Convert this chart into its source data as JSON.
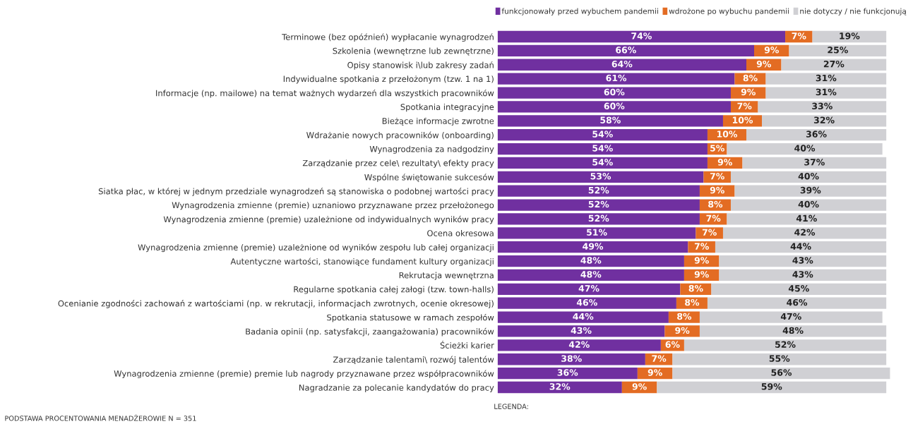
{
  "chart_data": {
    "type": "bar",
    "orientation": "horizontal",
    "stacked": true,
    "categories": [
      "Terminowe (bez opóźnień) wypłacanie wynagrodzeń",
      "Szkolenia (wewnętrzne lub zewnętrzne)",
      "Opisy stanowisk i\\lub zakresy zadań",
      "Indywidualne spotkania z przełożonym (tzw. 1 na 1)",
      "Informacje (np. mailowe) na temat ważnych wydarzeń dla wszystkich pracowników",
      "Spotkania integracyjne",
      "Bieżące informacje zwrotne",
      "Wdrażanie nowych pracowników (onboarding)",
      "Wynagrodzenia za nadgodziny",
      "Zarządzanie przez cele\\ rezultaty\\ efekty pracy",
      "Wspólne świętowanie sukcesów",
      "Siatka płac, w której w jednym przedziale wynagrodzeń są stanowiska o podobnej wartości pracy",
      "Wynagrodzenia zmienne (premie) uznaniowo przyznawane przez przełożonego",
      "Wynagrodzenia zmienne (premie) uzależnione od indywidualnych wyników pracy",
      "Ocena okresowa",
      "Wynagrodzenia zmienne (premie) uzależnione od wyników zespołu lub całej organizacji",
      "Autentyczne wartości, stanowiące fundament kultury organizacji",
      "Rekrutacja wewnętrzna",
      "Regularne spotkania całej załogi (tzw. town-halls)",
      "Ocenianie zgodności zachowań z wartościami (np. w rekrutacji, informacjach zwrotnych, ocenie okresowej)",
      "Spotkania statusowe w ramach zespołów",
      "Badania opinii (np. satysfakcji, zaangażowania) pracowników",
      "Ścieżki karier",
      "Zarządzanie talentami\\ rozwój talentów",
      "Wynagrodzenia zmienne (premie) premie lub nagrody przyznawane przez współpracowników",
      "Nagradzanie za polecanie kandydatów do pracy"
    ],
    "series": [
      {
        "name": "funkcjonowały przed wybuchem pandemii",
        "color": "#7030a0",
        "values": [
          74,
          66,
          64,
          61,
          60,
          60,
          58,
          54,
          54,
          54,
          53,
          52,
          52,
          52,
          51,
          49,
          48,
          48,
          47,
          46,
          44,
          43,
          42,
          38,
          36,
          32
        ],
        "value_labels": [
          "74%",
          "66%",
          "64%",
          "61%",
          "60%",
          "60%",
          "58%",
          "54%",
          "54%",
          "54%",
          "53%",
          "52%",
          "52%",
          "52%",
          "51%",
          "49%",
          "48%",
          "48%",
          "47%",
          "46%",
          "44%",
          "43%",
          "42%",
          "38%",
          "36%",
          "32%"
        ]
      },
      {
        "name": "wdrożone po wybuchu pandemii",
        "color": "#e36c23",
        "values": [
          7,
          9,
          9,
          8,
          9,
          7,
          10,
          10,
          5,
          9,
          7,
          9,
          8,
          7,
          7,
          7,
          9,
          9,
          8,
          8,
          8,
          9,
          6,
          7,
          9,
          9
        ],
        "value_labels": [
          "7%",
          "9%",
          "9%",
          "8%",
          "9%",
          "7%",
          "10%",
          "10%",
          "5%",
          "9%",
          "7%",
          "9%",
          "8%",
          "7%",
          "7%",
          "7%",
          "9%",
          "9%",
          "8%",
          "8%",
          "8%",
          "9%",
          "6%",
          "7%",
          "9%",
          "9%"
        ]
      },
      {
        "name": "nie dotyczy / nie funkcjonują",
        "color": "#d0d0d4",
        "values": [
          19,
          25,
          27,
          31,
          31,
          33,
          32,
          36,
          40,
          37,
          40,
          39,
          40,
          41,
          42,
          44,
          43,
          43,
          45,
          46,
          47,
          48,
          52,
          55,
          56,
          59
        ],
        "value_labels": [
          "19%",
          "25%",
          "27%",
          "31%",
          "31%",
          "33%",
          "32%",
          "36%",
          "40%",
          "37%",
          "40%",
          "39%",
          "40%",
          "41%",
          "42%",
          "44%",
          "43%",
          "43%",
          "45%",
          "46%",
          "47%",
          "48%",
          "52%",
          "55%",
          "56%",
          "59%"
        ]
      }
    ],
    "xlim": [
      0,
      101
    ],
    "tick_labels": "y",
    "legend": "top right",
    "grid": false,
    "annotations": [
      "LEGENDA:",
      "PODSTAWA PROCENTOWANIA MENADŻEROWIE N = 351"
    ]
  }
}
